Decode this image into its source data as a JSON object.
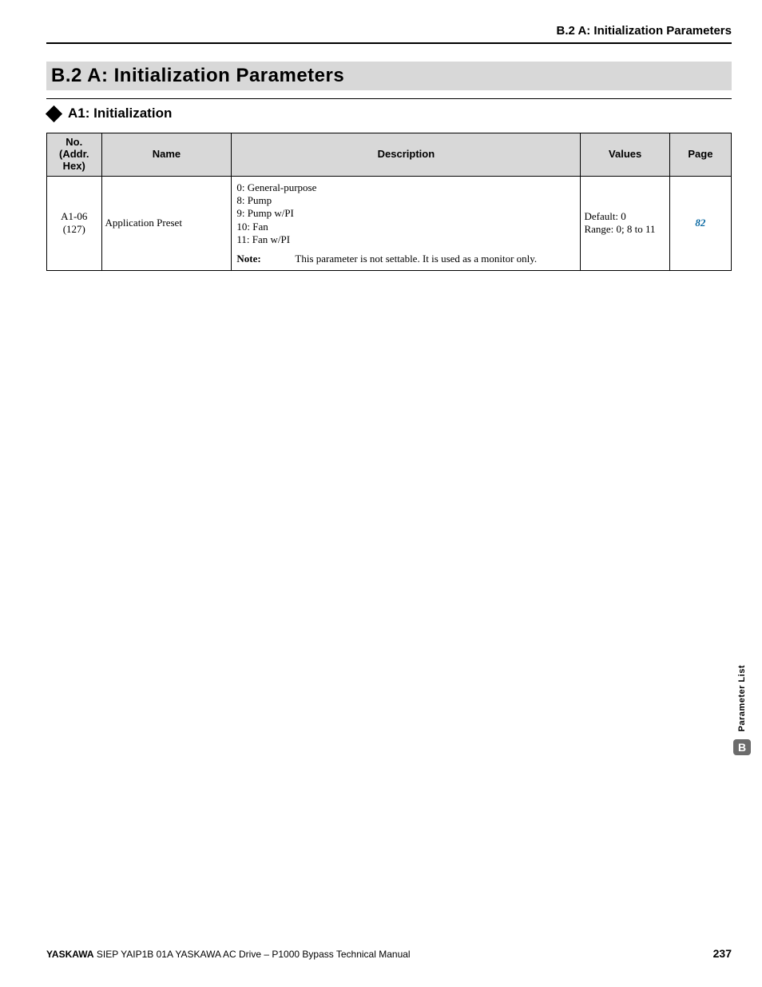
{
  "colors": {
    "page_bg": "#ffffff",
    "header_bg": "#d8d8d8",
    "rule": "#000000",
    "text": "#000000",
    "link": "#0b6aa3",
    "side_badge_bg": "#6b6b6b",
    "side_badge_fg": "#ffffff"
  },
  "typography": {
    "body_family": "Times New Roman",
    "heading_family": "Arial",
    "section_title_pt": 24,
    "subhead_pt": 17,
    "running_head_pt": 15,
    "table_pt": 13,
    "footer_pt": 12,
    "side_label_pt": 11
  },
  "running_head": "B.2 A: Initialization Parameters",
  "section_title": "B.2   A: Initialization Parameters",
  "subsection": {
    "icon": "diamond-icon",
    "title": "A1: Initialization"
  },
  "table": {
    "columns": [
      {
        "key": "no",
        "label": "No.\n(Addr.\nHex)",
        "width_pct": 8,
        "align": "center"
      },
      {
        "key": "name",
        "label": "Name",
        "width_pct": 19,
        "align": "left"
      },
      {
        "key": "desc",
        "label": "Description",
        "width_pct": 51,
        "align": "left"
      },
      {
        "key": "vals",
        "label": "Values",
        "width_pct": 13,
        "align": "left"
      },
      {
        "key": "page",
        "label": "Page",
        "width_pct": 9,
        "align": "center"
      }
    ],
    "rows": [
      {
        "no_line1": "A1-06",
        "no_line2": "(127)",
        "name": "Application Preset",
        "desc_items": [
          "0: General-purpose",
          "8: Pump",
          "9: Pump w/PI",
          "10: Fan",
          "11: Fan w/PI"
        ],
        "note_label": "Note:",
        "note_text": "This parameter is not settable. It is used as a monitor only.",
        "values_line1": "Default: 0",
        "values_line2": "Range: 0; 8 to 11",
        "page_ref": "82"
      }
    ]
  },
  "side_tab": {
    "label": "Parameter List",
    "badge": "B"
  },
  "footer": {
    "brand": "YASKAWA",
    "doc": " SIEP YAIP1B 01A YASKAWA AC Drive – P1000 Bypass Technical Manual",
    "page_number": "237"
  }
}
